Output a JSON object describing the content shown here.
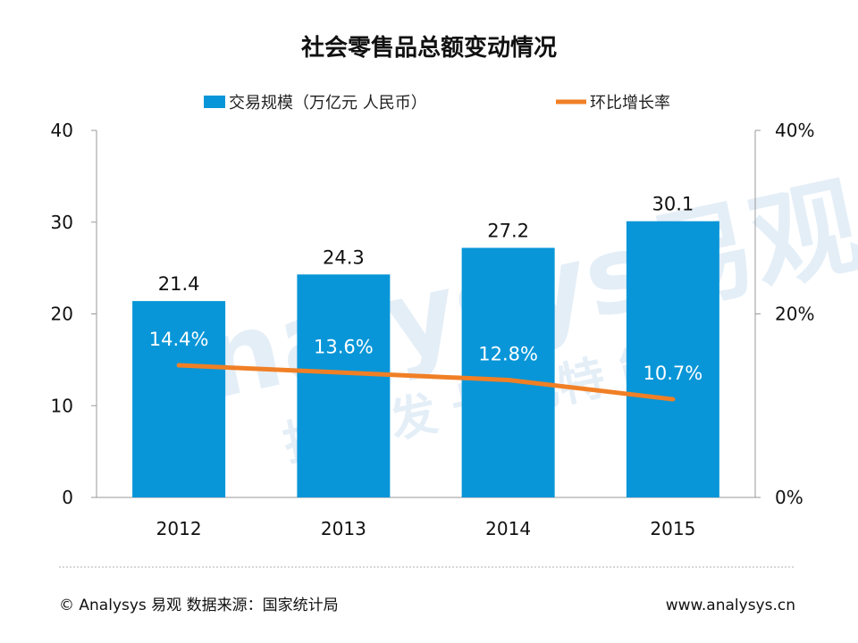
{
  "chart_data": {
    "type": "bar",
    "title": "社会零售品总额变动情况",
    "categories": [
      "2012",
      "2013",
      "2014",
      "2015"
    ],
    "series": [
      {
        "name": "交易规模（万亿元 人民币）",
        "type": "bar",
        "axis": "left",
        "color": "#0896d8",
        "values": [
          21.4,
          24.3,
          27.2,
          30.1
        ],
        "labels": [
          "21.4",
          "24.3",
          "27.2",
          "30.1"
        ]
      },
      {
        "name": "环比增长率",
        "type": "line",
        "axis": "right",
        "color": "#f07f25",
        "values": [
          14.4,
          13.6,
          12.8,
          10.7
        ],
        "labels": [
          "14.4%",
          "13.6%",
          "12.8%",
          "10.7%"
        ]
      }
    ],
    "y_left": {
      "ylim": [
        0,
        40
      ],
      "ticks": [
        "0",
        "10",
        "20",
        "30",
        "40"
      ]
    },
    "y_right": {
      "ylim": [
        0,
        40
      ],
      "ticks": [
        "0%",
        "20%",
        "40%"
      ],
      "tick_values": [
        0,
        20,
        40
      ]
    },
    "legend": "top-center"
  },
  "footer": {
    "source": "© Analysys 易观  数据来源：国家统计局",
    "website": "www.analysys.cn"
  },
  "watermark": {
    "brand": "Analysys易观",
    "slogan": "指数 发 长 比特 能"
  }
}
